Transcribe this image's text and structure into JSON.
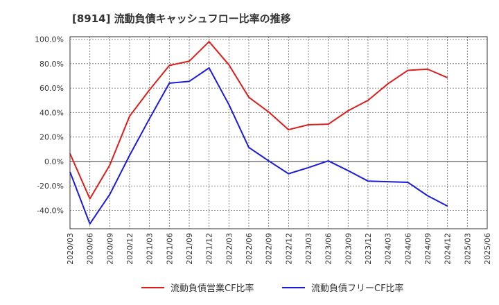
{
  "chart_data": {
    "type": "line",
    "title": "[8914]  流動負債キャッシュフロー比率の推移",
    "xlabel": "",
    "ylabel": "",
    "x": [
      "2020/03",
      "2020/06",
      "2020/09",
      "2020/12",
      "2021/03",
      "2021/06",
      "2021/09",
      "2021/12",
      "2022/03",
      "2022/06",
      "2022/09",
      "2022/12",
      "2023/03",
      "2023/06",
      "2023/09",
      "2023/12",
      "2024/03",
      "2024/06",
      "2024/09",
      "2024/12",
      "2025/03",
      "2025/06"
    ],
    "y_ticks": [
      "100.0%",
      "80.0%",
      "60.0%",
      "40.0%",
      "20.0%",
      "0.0%",
      "-20.0%",
      "-40.0%"
    ],
    "y_tick_values": [
      100,
      80,
      60,
      40,
      20,
      0,
      -20,
      -40
    ],
    "ylim": [
      -55,
      102
    ],
    "grid": true,
    "legend_position": "bottom",
    "series": [
      {
        "name": "流動負債営業CF比率",
        "color": "#dd1c1c",
        "values": [
          6.5,
          -30.5,
          -3.0,
          37.0,
          58.5,
          78.5,
          82.0,
          98.0,
          79.0,
          52.5,
          40.5,
          26.0,
          30.0,
          30.5,
          41.5,
          50.0,
          63.5,
          74.5,
          75.5,
          68.5,
          null,
          null
        ]
      },
      {
        "name": "流動負債フリーCF比率",
        "color": "#1a1adc",
        "values": [
          -8.5,
          -51.0,
          -27.0,
          5.0,
          35.0,
          64.0,
          65.5,
          76.5,
          46.5,
          11.5,
          0.5,
          -10.0,
          -5.0,
          0.5,
          -7.5,
          -16.0,
          -16.5,
          -17.0,
          -28.0,
          -36.5,
          null,
          null
        ]
      }
    ]
  }
}
